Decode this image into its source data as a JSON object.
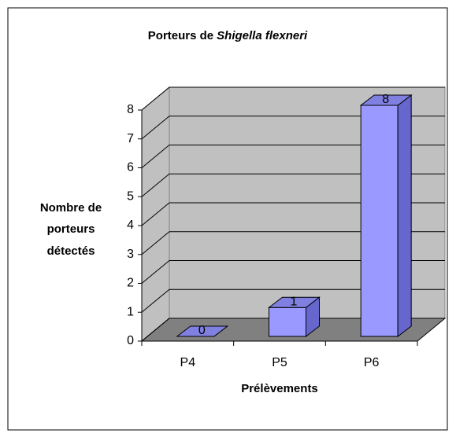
{
  "chart_data": {
    "type": "bar3d",
    "title": [
      "Porteurs de",
      "Shigella flexneri"
    ],
    "y_label": [
      "Nombre de",
      "porteurs",
      "détectés"
    ],
    "x_label": "Prélèvements",
    "categories": [
      "P4",
      "P5",
      "P6"
    ],
    "values": [
      0,
      1,
      8
    ],
    "color": "#9999ff",
    "ylim": [
      0,
      8
    ],
    "yticks": [
      0,
      1,
      2,
      3,
      4,
      5,
      6,
      7,
      8
    ],
    "grid": true
  }
}
